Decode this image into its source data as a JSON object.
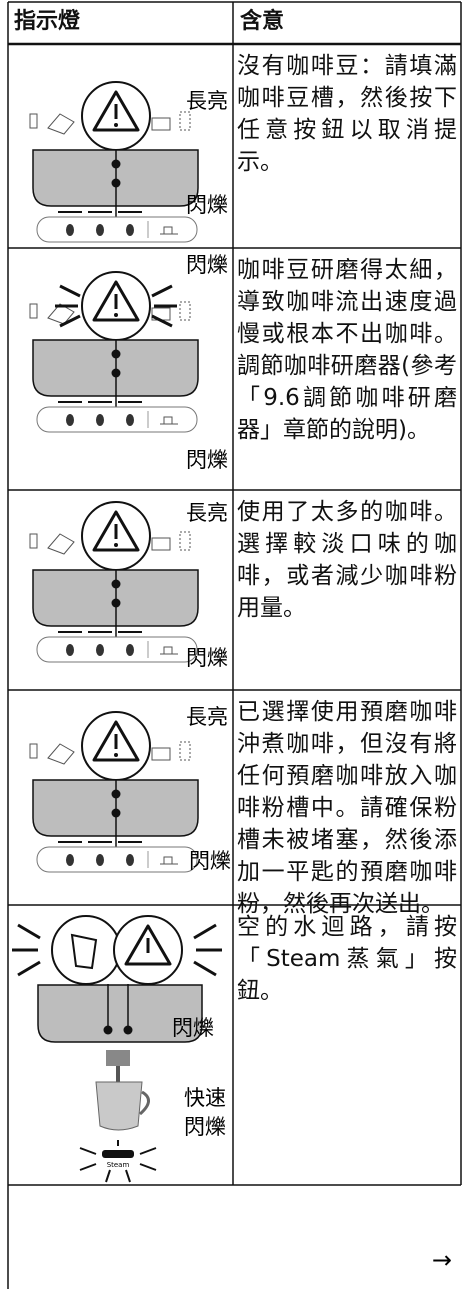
{
  "table": {
    "header": [
      "指示燈",
      "含意"
    ],
    "rows": [
      {
        "labels": [
          "長亮",
          "閃爍"
        ],
        "meaning": "沒有咖啡豆：請填滿咖啡豆槽，然後按下任意按鈕以取消提示。"
      },
      {
        "labels": [
          "閃爍",
          "閃爍"
        ],
        "meaning": "咖啡豆研磨得太細，導致咖啡流出速度過慢或根本不出咖啡。調節咖啡研磨器(參考「9.6調節咖啡研磨器」章節的說明)。"
      },
      {
        "labels": [
          "長亮",
          "閃爍"
        ],
        "meaning": "使用了太多的咖啡。選擇較淡口味的咖啡，或者減少咖啡粉用量。"
      },
      {
        "labels": [
          "長亮",
          "閃爍"
        ],
        "meaning": "已選擇使用預磨咖啡沖煮咖啡，但沒有將任何預磨咖啡放入咖啡粉槽中。請確保粉槽未被堵塞，然後添加一平匙的預磨咖啡粉，然後再次送出。"
      },
      {
        "labels": [
          "閃爍",
          "快速",
          "閃爍"
        ],
        "button": "Steam",
        "meaning": "空的水迴路，請按「Steam蒸氣」按鈕。"
      }
    ]
  },
  "footer": {
    "arrow": "→"
  }
}
